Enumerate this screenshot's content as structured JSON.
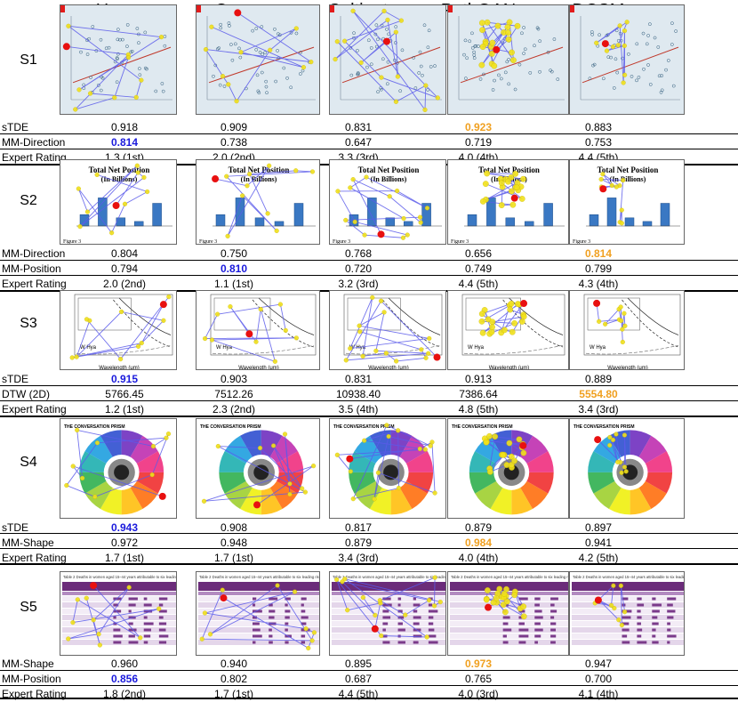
{
  "methods": [
    "Human",
    "Ours",
    "Saltinet",
    "PathGAN",
    "DCSM"
  ],
  "highlight_colors": {
    "best": "#1a1adc",
    "second": "#f0a020"
  },
  "scanpath_colors": {
    "line": "#5b5bea",
    "fixation": "#f2e21a",
    "start": "#e81010"
  },
  "rows": [
    {
      "id": "S1",
      "label": "S1",
      "thumb": "scatter",
      "metrics": [
        {
          "name": "sTDE",
          "values": [
            "0.918",
            "0.909",
            "0.831",
            "0.923",
            "0.883"
          ],
          "highlight": [
            null,
            null,
            null,
            "second",
            null
          ]
        },
        {
          "name": "MM-Direction",
          "values": [
            "0.814",
            "0.738",
            "0.647",
            "0.719",
            "0.753"
          ],
          "highlight": [
            "best",
            null,
            null,
            null,
            null
          ]
        },
        {
          "name": "Expert Rating",
          "values": [
            "1.3 (1st)",
            "2.0 (2nd)",
            "3.3 (3rd)",
            "4.0 (4th)",
            "4.4 (5th)"
          ],
          "highlight": [
            null,
            null,
            null,
            null,
            null
          ]
        }
      ]
    },
    {
      "id": "S2",
      "label": "S2",
      "thumb": "bars",
      "thumb_text": {
        "title1": "Total Net Position",
        "title2": "(In Billions)",
        "figure": "Figure 3"
      },
      "metrics": [
        {
          "name": "MM-Direction",
          "values": [
            "0.804",
            "0.750",
            "0.768",
            "0.656",
            "0.814"
          ],
          "highlight": [
            null,
            null,
            null,
            null,
            "second"
          ]
        },
        {
          "name": "MM-Position",
          "values": [
            "0.794",
            "0.810",
            "0.720",
            "0.749",
            "0.799"
          ],
          "highlight": [
            null,
            "best",
            null,
            null,
            null
          ]
        },
        {
          "name": "Expert Rating",
          "values": [
            "2.0 (2nd)",
            "1.1 (1st)",
            "3.2 (3rd)",
            "4.4 (5th)",
            "4.3 (4th)"
          ],
          "highlight": [
            null,
            null,
            null,
            null,
            null
          ]
        }
      ]
    },
    {
      "id": "S3",
      "label": "S3",
      "thumb": "curves",
      "thumb_text": {
        "xlabel": "Wavelength (μm)",
        "inset": "W Hya"
      },
      "metrics": [
        {
          "name": "sTDE",
          "values": [
            "0.915",
            "0.903",
            "0.831",
            "0.913",
            "0.889"
          ],
          "highlight": [
            "best",
            null,
            null,
            null,
            null
          ]
        },
        {
          "name": "DTW (2D)",
          "values": [
            "5766.45",
            "7512.26",
            "10938.40",
            "7386.64",
            "5554.80"
          ],
          "highlight": [
            null,
            null,
            null,
            null,
            "second"
          ]
        },
        {
          "name": "Expert Rating",
          "values": [
            "1.2 (1st)",
            "2.3 (2nd)",
            "3.5 (4th)",
            "4.8 (5th)",
            "3.4 (3rd)"
          ],
          "highlight": [
            null,
            null,
            null,
            null,
            null
          ]
        }
      ]
    },
    {
      "id": "S4",
      "label": "S4",
      "thumb": "wheel",
      "thumb_text": {
        "title": "THE CONVERSATION PRISM"
      },
      "metrics": [
        {
          "name": "sTDE",
          "values": [
            "0.943",
            "0.908",
            "0.817",
            "0.879",
            "0.897"
          ],
          "highlight": [
            "best",
            null,
            null,
            null,
            null
          ]
        },
        {
          "name": "MM-Shape",
          "values": [
            "0.972",
            "0.948",
            "0.879",
            "0.984",
            "0.941"
          ],
          "highlight": [
            null,
            null,
            null,
            "second",
            null
          ]
        },
        {
          "name": "Expert Rating",
          "values": [
            "1.7 (1st)",
            "1.7 (1st)",
            "3.4 (3rd)",
            "4.0 (4th)",
            "4.2 (5th)"
          ],
          "highlight": [
            null,
            null,
            null,
            null,
            null
          ]
        }
      ]
    },
    {
      "id": "S5",
      "label": "S5",
      "thumb": "table",
      "thumb_text": {
        "caption": "Table 2 Deaths in women aged 15–44 years attributable to six leading risk factors, 2004 (percentage)"
      },
      "metrics": [
        {
          "name": "MM-Shape",
          "values": [
            "0.960",
            "0.940",
            "0.895",
            "0.973",
            "0.947"
          ],
          "highlight": [
            null,
            null,
            null,
            "second",
            null
          ]
        },
        {
          "name": "MM-Position",
          "values": [
            "0.856",
            "0.802",
            "0.687",
            "0.765",
            "0.700"
          ],
          "highlight": [
            "best",
            null,
            null,
            null,
            null
          ]
        },
        {
          "name": "Expert Rating",
          "values": [
            "1.8 (2nd)",
            "1.7 (1st)",
            "4.4 (5th)",
            "4.0 (3rd)",
            "4.1 (4th)"
          ],
          "highlight": [
            null,
            null,
            null,
            null,
            null
          ]
        }
      ]
    }
  ]
}
